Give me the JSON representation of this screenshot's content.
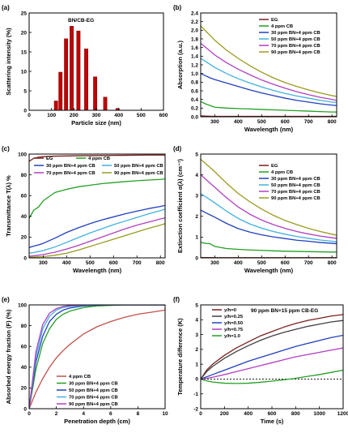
{
  "chart_data": [
    {
      "id": "a",
      "panel_label": "(a)",
      "type": "bar",
      "title": "BN/CB-EG",
      "xlabel": "Particle size (nm)",
      "ylabel": "Scattering intensity (%)",
      "xlim": [
        0,
        600
      ],
      "ylim": [
        0,
        25
      ],
      "xticks": [
        0,
        100,
        200,
        300,
        400,
        500,
        600
      ],
      "yticks": [
        0,
        5,
        10,
        15,
        20,
        25
      ],
      "bar_color": "#c00000",
      "bar_width": 16,
      "x": [
        120,
        140,
        165,
        190,
        220,
        255,
        295,
        340,
        395
      ],
      "values": [
        2.4,
        9.8,
        18.4,
        21.6,
        20.4,
        15.8,
        8.6,
        3.4,
        0.5
      ]
    },
    {
      "id": "b",
      "panel_label": "(b)",
      "type": "line",
      "xlabel": "Wavelength (nm)",
      "ylabel": "Absorption (a.u.)",
      "xlim": [
        240,
        820
      ],
      "ylim": [
        0,
        2.4
      ],
      "xticks": [
        300,
        400,
        500,
        600,
        700,
        800
      ],
      "yticks": [
        0.0,
        0.2,
        0.4,
        0.6,
        0.8,
        1.0,
        1.2,
        1.4,
        1.6,
        1.8,
        2.0,
        2.2,
        2.4
      ],
      "legend_position": "top-right",
      "x": [
        240,
        260,
        280,
        300,
        350,
        400,
        450,
        500,
        550,
        600,
        650,
        700,
        750,
        800,
        820
      ],
      "series": [
        {
          "name": "EG",
          "color": "#7b2020",
          "values": [
            0.02,
            0.015,
            0.012,
            0.01,
            0.01,
            0.01,
            0.01,
            0.01,
            0.01,
            0.01,
            0.01,
            0.01,
            0.01,
            0.01,
            0.01
          ]
        },
        {
          "name": "4 ppm CB",
          "color": "#22a022",
          "values": [
            0.35,
            0.3,
            0.26,
            0.22,
            0.2,
            0.19,
            0.18,
            0.17,
            0.16,
            0.15,
            0.14,
            0.13,
            0.12,
            0.11,
            0.11
          ]
        },
        {
          "name": "30 ppm BN+4 ppm CB",
          "color": "#2040c0",
          "values": [
            1.0,
            0.95,
            0.9,
            0.86,
            0.78,
            0.7,
            0.62,
            0.55,
            0.49,
            0.43,
            0.38,
            0.34,
            0.3,
            0.27,
            0.26
          ]
        },
        {
          "name": "50 ppm BN+4 ppm CB",
          "color": "#40b0e0",
          "values": [
            1.35,
            1.28,
            1.21,
            1.14,
            1.0,
            0.88,
            0.78,
            0.69,
            0.61,
            0.54,
            0.48,
            0.43,
            0.38,
            0.34,
            0.33
          ]
        },
        {
          "name": "70 ppm BN+4 ppm CB",
          "color": "#b040c0",
          "values": [
            1.7,
            1.61,
            1.52,
            1.43,
            1.25,
            1.1,
            0.97,
            0.85,
            0.75,
            0.66,
            0.58,
            0.51,
            0.45,
            0.4,
            0.38
          ]
        },
        {
          "name": "90 ppm BN+4 ppm CB",
          "color": "#9a9a20",
          "values": [
            2.1,
            1.99,
            1.88,
            1.77,
            1.54,
            1.35,
            1.18,
            1.03,
            0.9,
            0.79,
            0.7,
            0.62,
            0.55,
            0.49,
            0.47
          ]
        }
      ]
    },
    {
      "id": "c",
      "panel_label": "(c)",
      "type": "line",
      "xlabel": "Wavelength (nm)",
      "ylabel": "Transmittance T(λ) %",
      "xlim": [
        240,
        820
      ],
      "ylim": [
        0,
        100
      ],
      "xticks": [
        300,
        400,
        500,
        600,
        700,
        800
      ],
      "yticks": [
        0,
        20,
        40,
        60,
        80,
        100
      ],
      "legend_position": "top",
      "x": [
        240,
        260,
        280,
        300,
        350,
        400,
        450,
        500,
        550,
        600,
        650,
        700,
        750,
        800,
        820
      ],
      "series": [
        {
          "name": "EG",
          "color": "#7b2020",
          "values": [
            93,
            96,
            97,
            97.5,
            98,
            98.2,
            98.4,
            98.5,
            98.6,
            98.7,
            98.8,
            98.9,
            99,
            99,
            99
          ]
        },
        {
          "name": "4 ppm CB",
          "color": "#22a022",
          "values": [
            38,
            46,
            49,
            55,
            63,
            66,
            68.5,
            70,
            71.5,
            72.5,
            73.5,
            74.3,
            75,
            75.6,
            76
          ]
        },
        {
          "name": "30 ppm BN+4 ppm CB",
          "color": "#2040c0",
          "values": [
            10,
            11.3,
            12.5,
            14,
            19,
            24.5,
            29,
            33,
            36.5,
            39.5,
            42.5,
            45,
            47.5,
            49.5,
            50.5
          ]
        },
        {
          "name": "50 ppm BN+4 ppm CB",
          "color": "#40b0e0",
          "values": [
            4.5,
            5.2,
            6.1,
            7,
            10.5,
            15,
            19.5,
            24,
            28,
            32,
            35.5,
            39,
            42.5,
            45.5,
            47
          ]
        },
        {
          "name": "70 ppm BN+4 ppm CB",
          "color": "#b040c0",
          "values": [
            1.5,
            2,
            2.6,
            3.2,
            5.5,
            8.5,
            12,
            16,
            20,
            24,
            28,
            31.5,
            34.5,
            37.5,
            38.5
          ]
        },
        {
          "name": "90 ppm BN+4 ppm CB",
          "color": "#9a9a20",
          "values": [
            0.5,
            0.8,
            1,
            1.3,
            2.5,
            4.5,
            7.5,
            11,
            14.5,
            18,
            21.5,
            25,
            28.5,
            31.5,
            33
          ]
        }
      ]
    },
    {
      "id": "d",
      "panel_label": "(d)",
      "type": "line",
      "xlabel": "Wavelength (nm)",
      "ylabel": "Extinction coefficient α(λ) (cm⁻¹)",
      "xlim": [
        240,
        820
      ],
      "ylim": [
        0,
        5
      ],
      "xticks": [
        300,
        400,
        500,
        600,
        700,
        800
      ],
      "yticks": [
        0,
        1,
        2,
        3,
        4,
        5
      ],
      "legend_position": "top-right",
      "x": [
        240,
        260,
        280,
        300,
        350,
        400,
        450,
        500,
        550,
        600,
        650,
        700,
        750,
        800,
        820
      ],
      "series": [
        {
          "name": "EG",
          "color": "#7b2020",
          "values": [
            0.02,
            0.015,
            0.012,
            0.01,
            0.01,
            0.01,
            0.01,
            0.01,
            0.01,
            0.01,
            0.01,
            0.01,
            0.01,
            0.01,
            0.01
          ]
        },
        {
          "name": "4 ppm CB",
          "color": "#22a022",
          "values": [
            0.75,
            0.7,
            0.68,
            0.55,
            0.45,
            0.41,
            0.38,
            0.36,
            0.34,
            0.32,
            0.31,
            0.3,
            0.29,
            0.28,
            0.28
          ]
        },
        {
          "name": "30 ppm BN+4 ppm CB",
          "color": "#2040c0",
          "values": [
            2.3,
            2.18,
            2.07,
            1.96,
            1.66,
            1.41,
            1.24,
            1.11,
            1.01,
            0.93,
            0.85,
            0.8,
            0.74,
            0.7,
            0.68
          ]
        },
        {
          "name": "50 ppm BN+4 ppm CB",
          "color": "#40b0e0",
          "values": [
            3.1,
            2.95,
            2.8,
            2.65,
            2.25,
            1.9,
            1.63,
            1.43,
            1.27,
            1.14,
            1.03,
            0.94,
            0.86,
            0.8,
            0.77
          ]
        },
        {
          "name": "70 ppm BN+4 ppm CB",
          "color": "#b040c0",
          "values": [
            4.0,
            3.8,
            3.6,
            3.4,
            2.9,
            2.45,
            2.1,
            1.82,
            1.6,
            1.42,
            1.27,
            1.15,
            1.05,
            0.97,
            0.94
          ]
        },
        {
          "name": "90 ppm BN+4 ppm CB",
          "color": "#9a9a20",
          "values": [
            4.75,
            4.55,
            4.35,
            4.15,
            3.6,
            3.1,
            2.7,
            2.35,
            2.05,
            1.8,
            1.6,
            1.42,
            1.27,
            1.14,
            1.09
          ]
        }
      ]
    },
    {
      "id": "e",
      "panel_label": "(e)",
      "type": "line",
      "xlabel": "Penetration depth (cm)",
      "ylabel": "Absorbed energy fraction (F) (%)",
      "xlim": [
        0,
        10
      ],
      "ylim": [
        0,
        100
      ],
      "xticks": [
        0,
        2,
        4,
        6,
        8,
        10
      ],
      "yticks": [
        0,
        20,
        40,
        60,
        80,
        100
      ],
      "legend_position": "bottom-right",
      "x": [
        0,
        0.5,
        1,
        1.5,
        2,
        2.5,
        3,
        4,
        5,
        6,
        7,
        8,
        9,
        10
      ],
      "series": [
        {
          "name": "4 ppm CB",
          "color": "#c0504d",
          "values": [
            0,
            16,
            29,
            40,
            49,
            56,
            62,
            72,
            79,
            84,
            88,
            91,
            93,
            95
          ]
        },
        {
          "name": "30 ppm BN+4 ppm CB",
          "color": "#22a022",
          "values": [
            0,
            38,
            63,
            77,
            86,
            91,
            94,
            97.5,
            99,
            99.5,
            100,
            100,
            100,
            100
          ]
        },
        {
          "name": "50 ppm BN+4 ppm CB",
          "color": "#2040c0",
          "values": [
            0,
            45,
            70,
            84,
            91,
            95,
            97,
            99,
            99.7,
            100,
            100,
            100,
            100,
            100
          ]
        },
        {
          "name": "70 ppm BN+4 ppm CB",
          "color": "#40b0e0",
          "values": [
            0,
            50,
            77,
            89,
            95,
            97.5,
            98.5,
            99.6,
            100,
            100,
            100,
            100,
            100,
            100
          ]
        },
        {
          "name": "90 ppm BN+4 ppm CB",
          "color": "#b040c0",
          "values": [
            0,
            55,
            81,
            92,
            96.5,
            98.5,
            99.3,
            100,
            100,
            100,
            100,
            100,
            100,
            100
          ]
        }
      ]
    },
    {
      "id": "f",
      "panel_label": "(f)",
      "type": "line",
      "title": "90 ppm BN+15 ppm CB-EG",
      "xlabel": "Time (s)",
      "ylabel": "Temperature difference (K)",
      "xlim": [
        0,
        1200
      ],
      "ylim": [
        -2,
        5
      ],
      "xticks": [
        0,
        200,
        400,
        600,
        800,
        1000,
        1200
      ],
      "yticks": [
        -2,
        -1,
        0,
        1,
        2,
        3,
        4,
        5
      ],
      "zero_line": true,
      "legend_position": "top-left",
      "x": [
        0,
        50,
        100,
        200,
        300,
        400,
        500,
        600,
        700,
        800,
        900,
        1000,
        1100,
        1200
      ],
      "series": [
        {
          "name": "y/h=0",
          "color": "#7b2020",
          "values": [
            0,
            0.6,
            1.0,
            1.6,
            2.1,
            2.5,
            2.9,
            3.2,
            3.5,
            3.75,
            3.95,
            4.1,
            4.25,
            4.35
          ]
        },
        {
          "name": "y/h=0.25",
          "color": "#404040",
          "values": [
            0,
            0.5,
            0.85,
            1.4,
            1.85,
            2.25,
            2.6,
            2.9,
            3.15,
            3.35,
            3.55,
            3.7,
            3.85,
            3.95
          ]
        },
        {
          "name": "y/h=0.50",
          "color": "#2040c0",
          "values": [
            0,
            0.15,
            0.3,
            0.6,
            0.9,
            1.2,
            1.45,
            1.7,
            1.95,
            2.2,
            2.4,
            2.6,
            2.8,
            2.95
          ]
        },
        {
          "name": "y/h=0.75",
          "color": "#b040c0",
          "values": [
            0,
            0.05,
            0.12,
            0.3,
            0.5,
            0.7,
            0.9,
            1.1,
            1.3,
            1.5,
            1.65,
            1.8,
            1.95,
            2.1
          ]
        },
        {
          "name": "y/h=1.0",
          "color": "#22a022",
          "values": [
            0,
            -0.12,
            -0.2,
            -0.28,
            -0.3,
            -0.28,
            -0.22,
            -0.14,
            -0.05,
            0.05,
            0.18,
            0.3,
            0.45,
            0.6
          ]
        }
      ]
    }
  ]
}
